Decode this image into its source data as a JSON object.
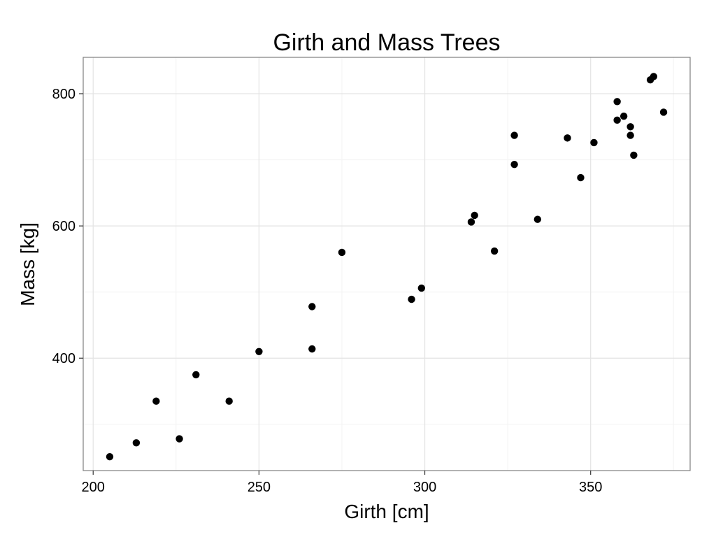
{
  "chart_data": {
    "type": "scatter",
    "title": "Girth and Mass Trees",
    "xlabel": "Girth [cm]",
    "ylabel": "Mass [kg]",
    "xlim": [
      197,
      380
    ],
    "ylim": [
      230,
      855
    ],
    "x_ticks": [
      200,
      250,
      300,
      350
    ],
    "y_ticks": [
      400,
      600,
      800
    ],
    "x_minor_grid": [
      225,
      275,
      325,
      375
    ],
    "y_minor_grid": [
      300,
      500,
      700
    ],
    "grid": true,
    "legend": "none",
    "colors": {
      "point": "#000000",
      "grid_major": "#e3e3e3",
      "grid_minor": "#f3f3f3",
      "panel_border": "#7f7f7f",
      "background": "#ffffff"
    },
    "points": [
      {
        "x": 205,
        "y": 251
      },
      {
        "x": 213,
        "y": 272
      },
      {
        "x": 219,
        "y": 335
      },
      {
        "x": 226,
        "y": 278
      },
      {
        "x": 231,
        "y": 375
      },
      {
        "x": 241,
        "y": 335
      },
      {
        "x": 250,
        "y": 410
      },
      {
        "x": 266,
        "y": 414
      },
      {
        "x": 266,
        "y": 478
      },
      {
        "x": 275,
        "y": 560
      },
      {
        "x": 296,
        "y": 489
      },
      {
        "x": 299,
        "y": 506
      },
      {
        "x": 314,
        "y": 606
      },
      {
        "x": 315,
        "y": 616
      },
      {
        "x": 321,
        "y": 562
      },
      {
        "x": 327,
        "y": 693
      },
      {
        "x": 327,
        "y": 737
      },
      {
        "x": 334,
        "y": 610
      },
      {
        "x": 343,
        "y": 733
      },
      {
        "x": 347,
        "y": 673
      },
      {
        "x": 351,
        "y": 726
      },
      {
        "x": 358,
        "y": 760
      },
      {
        "x": 358,
        "y": 788
      },
      {
        "x": 360,
        "y": 766
      },
      {
        "x": 362,
        "y": 737
      },
      {
        "x": 362,
        "y": 750
      },
      {
        "x": 363,
        "y": 707
      },
      {
        "x": 368,
        "y": 821
      },
      {
        "x": 369,
        "y": 826
      },
      {
        "x": 372,
        "y": 772
      }
    ]
  }
}
